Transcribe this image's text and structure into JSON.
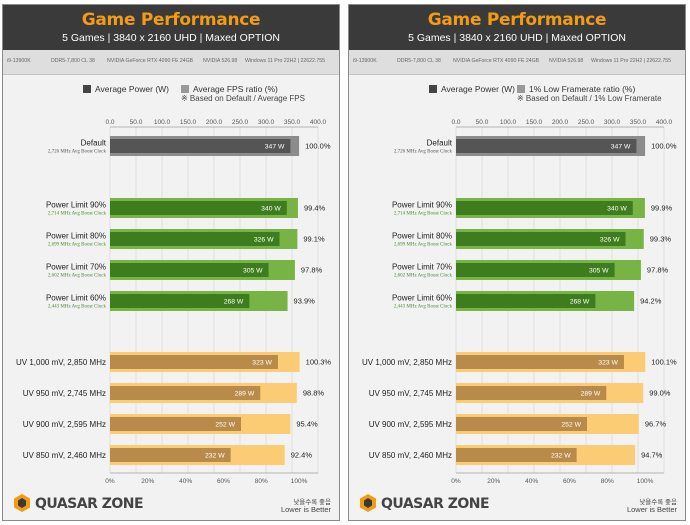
{
  "panels": [
    {
      "title": "Game Performance",
      "subtitle": "5 Games  |  3840 x 2160 UHD  |  Maxed OPTION",
      "specs": [
        "i9-13900K",
        "DDR5-7,800 CL 38",
        "NVIDIA GeForce RTX 4090 FE 24GB",
        "NVIDIA 526.98",
        "Windows 11 Pro 22H2 | 22622.755"
      ],
      "legend": {
        "power_label": "Average Power (W)",
        "ratio_label": "Average FPS ratio (%)",
        "note": "※ Based on Default / Average FPS"
      },
      "footer": {
        "line1": "낮을수록 좋음",
        "line2": "Lower is Better"
      },
      "chart_data": {
        "type": "bar",
        "title": "Game Performance",
        "categories": [
          "Default",
          "Power Limit 90%",
          "Power Limit 80%",
          "Power Limit 70%",
          "Power Limit 60%",
          "UV 1,000 mV, 2,850 MHz",
          "UV 950 mV, 2,745 MHz",
          "UV 900 mV, 2,595 MHz",
          "UV 850 mV, 2,460 MHz"
        ],
        "sublabels": [
          "2,726 MHz Avg Boost Clock",
          "2,714 MHz Avg Boost Clock",
          "2,699 MHz Avg Boost Clock",
          "2,602 MHz Avg Boost Clock",
          "2,443 MHz Avg Boost Clock",
          "",
          "",
          "",
          ""
        ],
        "groups": [
          "default",
          "pl",
          "pl",
          "pl",
          "pl",
          "uv",
          "uv",
          "uv",
          "uv"
        ],
        "series": [
          {
            "name": "Average Power (W)",
            "axis": "top",
            "values": [
              347,
              340,
              326,
              305,
              268,
              323,
              289,
              252,
              232
            ],
            "labels": [
              "347 W",
              "340 W",
              "326 W",
              "305 W",
              "268 W",
              "323 W",
              "289 W",
              "252 W",
              "232 W"
            ]
          },
          {
            "name": "Average FPS ratio (%)",
            "axis": "bottom",
            "values": [
              100.0,
              99.4,
              99.1,
              97.8,
              93.9,
              100.3,
              98.8,
              95.4,
              92.4
            ],
            "labels": [
              "100.0%",
              "99.4%",
              "99.1%",
              "97.8%",
              "93.9%",
              "100.3%",
              "98.8%",
              "95.4%",
              "92.4%"
            ]
          }
        ],
        "top_axis": {
          "ticks": [
            "0.0",
            "50.0",
            "100.0",
            "150.0",
            "200.0",
            "250.0",
            "300.0",
            "350.0",
            "400.0"
          ],
          "range": [
            0,
            400
          ]
        },
        "bottom_axis": {
          "ticks": [
            "0%",
            "20%",
            "40%",
            "60%",
            "80%",
            "100%"
          ],
          "range": [
            0,
            110
          ]
        },
        "grid": true
      }
    },
    {
      "title": "Game Performance",
      "subtitle": "5 Games  |  3840 x 2160 UHD  |  Maxed OPTION",
      "specs": [
        "i9-13900K",
        "DDR5-7,800 CL 38",
        "NVIDIA GeForce RTX 4090 FE 24GB",
        "NVIDIA 526.98",
        "Windows 11 Pro 22H2 | 22622.755"
      ],
      "legend": {
        "power_label": "Average Power (W)",
        "ratio_label": "1% Low Framerate ratio (%)",
        "note": "※ Based on Default / 1% Low Framerate"
      },
      "footer": {
        "line1": "낮을수록 좋음",
        "line2": "Lower is Better"
      },
      "chart_data": {
        "type": "bar",
        "title": "Game Performance",
        "categories": [
          "Default",
          "Power Limit 90%",
          "Power Limit 80%",
          "Power Limit 70%",
          "Power Limit 60%",
          "UV 1,000 mV, 2,850 MHz",
          "UV 950 mV, 2,745 MHz",
          "UV 900 mV, 2,595 MHz",
          "UV 850 mV, 2,460 MHz"
        ],
        "sublabels": [
          "2,726 MHz Avg Boost Clock",
          "2,714 MHz Avg Boost Clock",
          "2,699 MHz Avg Boost Clock",
          "2,602 MHz Avg Boost Clock",
          "2,443 MHz Avg Boost Clock",
          "",
          "",
          "",
          ""
        ],
        "groups": [
          "default",
          "pl",
          "pl",
          "pl",
          "pl",
          "uv",
          "uv",
          "uv",
          "uv"
        ],
        "series": [
          {
            "name": "Average Power (W)",
            "axis": "top",
            "values": [
              347,
              340,
              326,
              305,
              268,
              323,
              289,
              252,
              232
            ],
            "labels": [
              "347 W",
              "340 W",
              "326 W",
              "305 W",
              "268 W",
              "323 W",
              "289 W",
              "252 W",
              "232 W"
            ]
          },
          {
            "name": "1% Low Framerate ratio (%)",
            "axis": "bottom",
            "values": [
              100.0,
              99.9,
              99.3,
              97.8,
              94.2,
              100.1,
              99.0,
              96.7,
              94.7
            ],
            "labels": [
              "100.0%",
              "99.9%",
              "99.3%",
              "97.8%",
              "94.2%",
              "100.1%",
              "99.0%",
              "96.7%",
              "94.7%"
            ]
          }
        ],
        "top_axis": {
          "ticks": [
            "0.0",
            "50.0",
            "100.0",
            "150.0",
            "200.0",
            "250.0",
            "300.0",
            "350.0",
            "400.0"
          ],
          "range": [
            0,
            400
          ]
        },
        "bottom_axis": {
          "ticks": [
            "0%",
            "20%",
            "40%",
            "60%",
            "80%",
            "100%"
          ],
          "range": [
            0,
            110
          ]
        },
        "grid": true
      }
    }
  ],
  "brand": {
    "logo_text": "QUASAR ZONE"
  },
  "colors": {
    "header_bg": "#3a3a3a",
    "title": "#f39c12",
    "default_light": "#8c8c8c",
    "default_dark": "#555555",
    "pl_light": "#78b346",
    "pl_dark": "#3e7d1e",
    "uv_light": "#fccc75",
    "uv_dark": "#b98b4b",
    "legend_power": "#444444",
    "legend_ratio": "#999999",
    "sublabel_default": "#555555",
    "sublabel_pl": "#4e8a2a"
  }
}
